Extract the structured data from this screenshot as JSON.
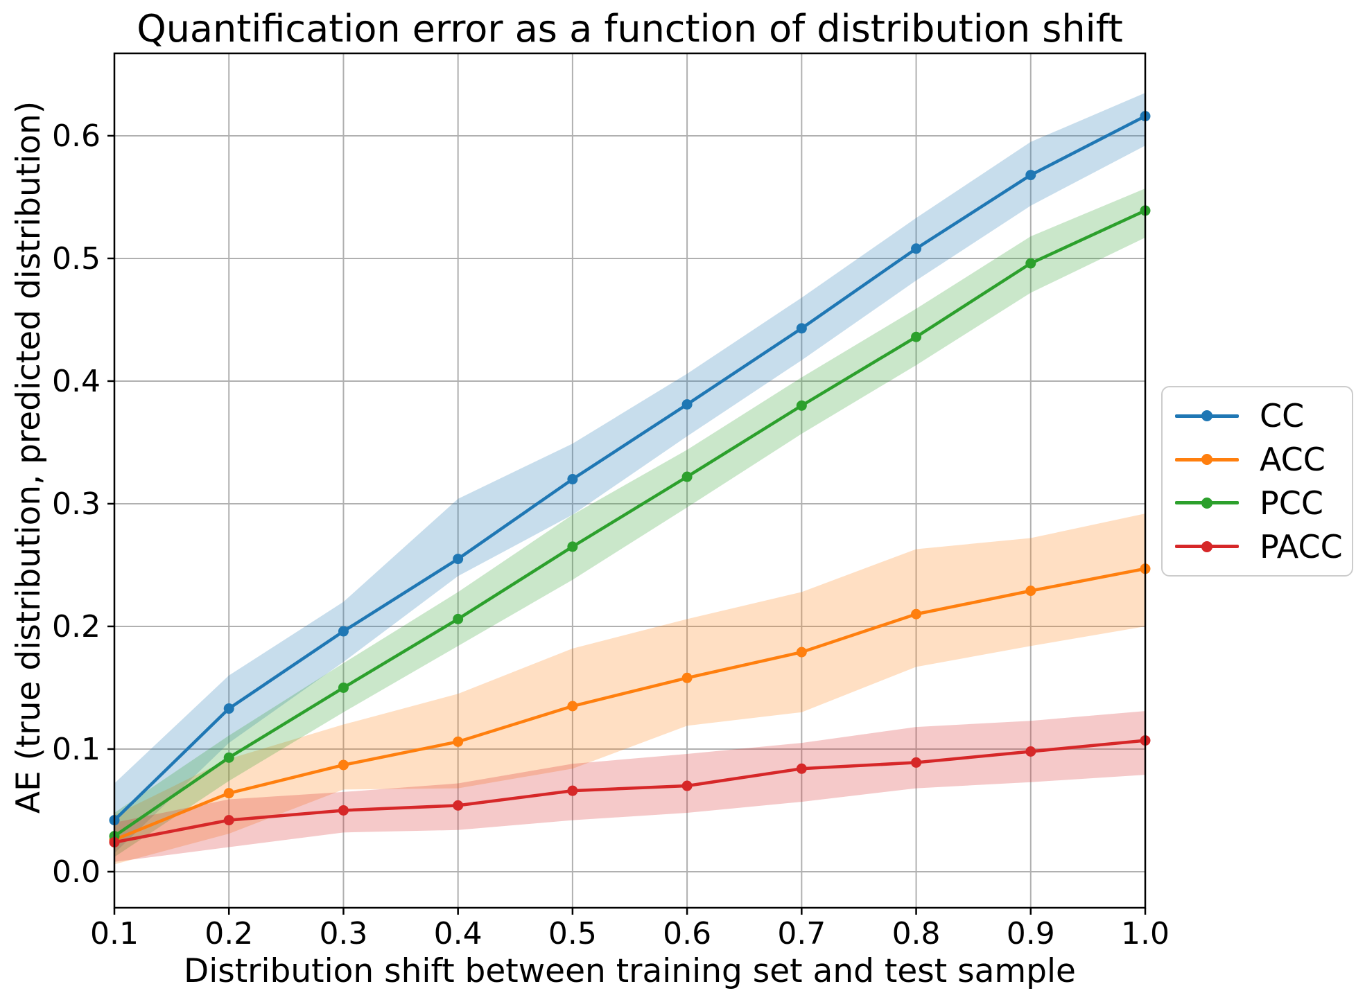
{
  "figure": {
    "title": "Quantification error as a function of distribution shift",
    "xlabel": "Distribution shift between training set and test sample",
    "ylabel": "AE (true distribution, predicted distribution)"
  },
  "chart_data": {
    "type": "line",
    "title": "Quantification error as a function of distribution shift",
    "xlabel": "Distribution shift between training set and test sample",
    "ylabel": "AE (true distribution, predicted distribution)",
    "grid": true,
    "grid_color": "#b0b0b0",
    "legend_position": "center-right-outside",
    "x": [
      0.1,
      0.2,
      0.3,
      0.4,
      0.5,
      0.6,
      0.7,
      0.8,
      0.9,
      1.0
    ],
    "xlim": [
      0.1,
      1.0
    ],
    "ylim": [
      -0.0294,
      0.6672
    ],
    "xticks": {
      "values": [
        0.1,
        0.2,
        0.3,
        0.4,
        0.5,
        0.6,
        0.7,
        0.8,
        0.9,
        1.0
      ],
      "labels": [
        "0.1",
        "0.2",
        "0.3",
        "0.4",
        "0.5",
        "0.6",
        "0.7",
        "0.8",
        "0.9",
        "1.0"
      ]
    },
    "yticks": {
      "values": [
        0.0,
        0.1,
        0.2,
        0.3,
        0.4,
        0.5,
        0.6
      ],
      "labels": [
        "0.0",
        "0.1",
        "0.2",
        "0.3",
        "0.4",
        "0.5",
        "0.6"
      ]
    },
    "band_opacity": 0.25,
    "series": [
      {
        "name": "CC",
        "color": "#1f77b4",
        "values": [
          0.042,
          0.133,
          0.196,
          0.255,
          0.32,
          0.381,
          0.443,
          0.508,
          0.568,
          0.616
        ],
        "band_low": [
          0.015,
          0.105,
          0.171,
          0.241,
          0.291,
          0.355,
          0.417,
          0.482,
          0.543,
          0.592
        ],
        "band_high": [
          0.072,
          0.16,
          0.22,
          0.304,
          0.349,
          0.406,
          0.468,
          0.533,
          0.595,
          0.635
        ]
      },
      {
        "name": "ACC",
        "color": "#ff7f0e",
        "values": [
          0.026,
          0.064,
          0.087,
          0.106,
          0.135,
          0.158,
          0.179,
          0.21,
          0.229,
          0.247
        ],
        "band_low": [
          0.006,
          0.031,
          0.067,
          0.068,
          0.084,
          0.119,
          0.13,
          0.167,
          0.184,
          0.2
        ],
        "band_high": [
          0.046,
          0.092,
          0.12,
          0.145,
          0.182,
          0.206,
          0.228,
          0.263,
          0.272,
          0.292
        ]
      },
      {
        "name": "PCC",
        "color": "#2ca02c",
        "values": [
          0.029,
          0.093,
          0.15,
          0.206,
          0.265,
          0.322,
          0.38,
          0.436,
          0.496,
          0.539
        ],
        "band_low": [
          0.012,
          0.074,
          0.13,
          0.184,
          0.238,
          0.297,
          0.357,
          0.413,
          0.472,
          0.517
        ],
        "band_high": [
          0.048,
          0.111,
          0.17,
          0.228,
          0.291,
          0.344,
          0.403,
          0.459,
          0.518,
          0.557
        ]
      },
      {
        "name": "PACC",
        "color": "#d62728",
        "values": [
          0.024,
          0.042,
          0.05,
          0.054,
          0.066,
          0.07,
          0.084,
          0.089,
          0.098,
          0.107
        ],
        "band_low": [
          0.008,
          0.02,
          0.032,
          0.034,
          0.042,
          0.048,
          0.057,
          0.068,
          0.073,
          0.079
        ],
        "band_high": [
          0.04,
          0.059,
          0.065,
          0.072,
          0.088,
          0.096,
          0.105,
          0.118,
          0.123,
          0.131
        ]
      }
    ]
  }
}
